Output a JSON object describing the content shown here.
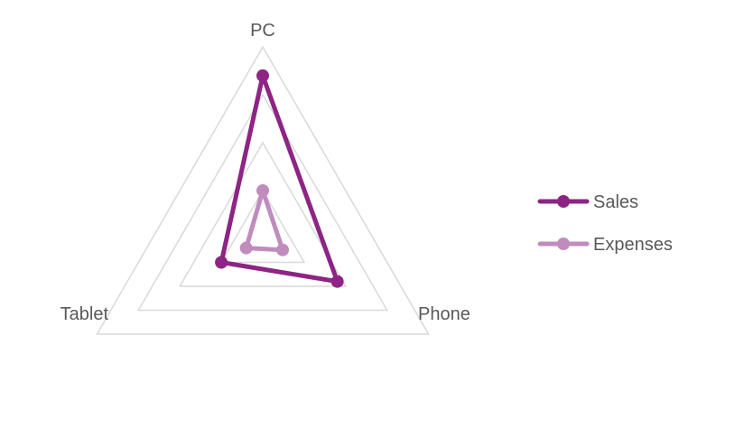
{
  "chart_data": {
    "type": "radar",
    "categories": [
      "PC",
      "Phone",
      "Tablet"
    ],
    "series": [
      {
        "name": "Sales",
        "values": [
          85,
          45,
          25
        ],
        "color": "#8e2483"
      },
      {
        "name": "Expenses",
        "values": [
          25,
          12,
          10
        ],
        "color": "#c08cbd"
      }
    ],
    "rlim": [
      0,
      100
    ],
    "grid_rings": 4,
    "grid": true,
    "legend": "right"
  }
}
